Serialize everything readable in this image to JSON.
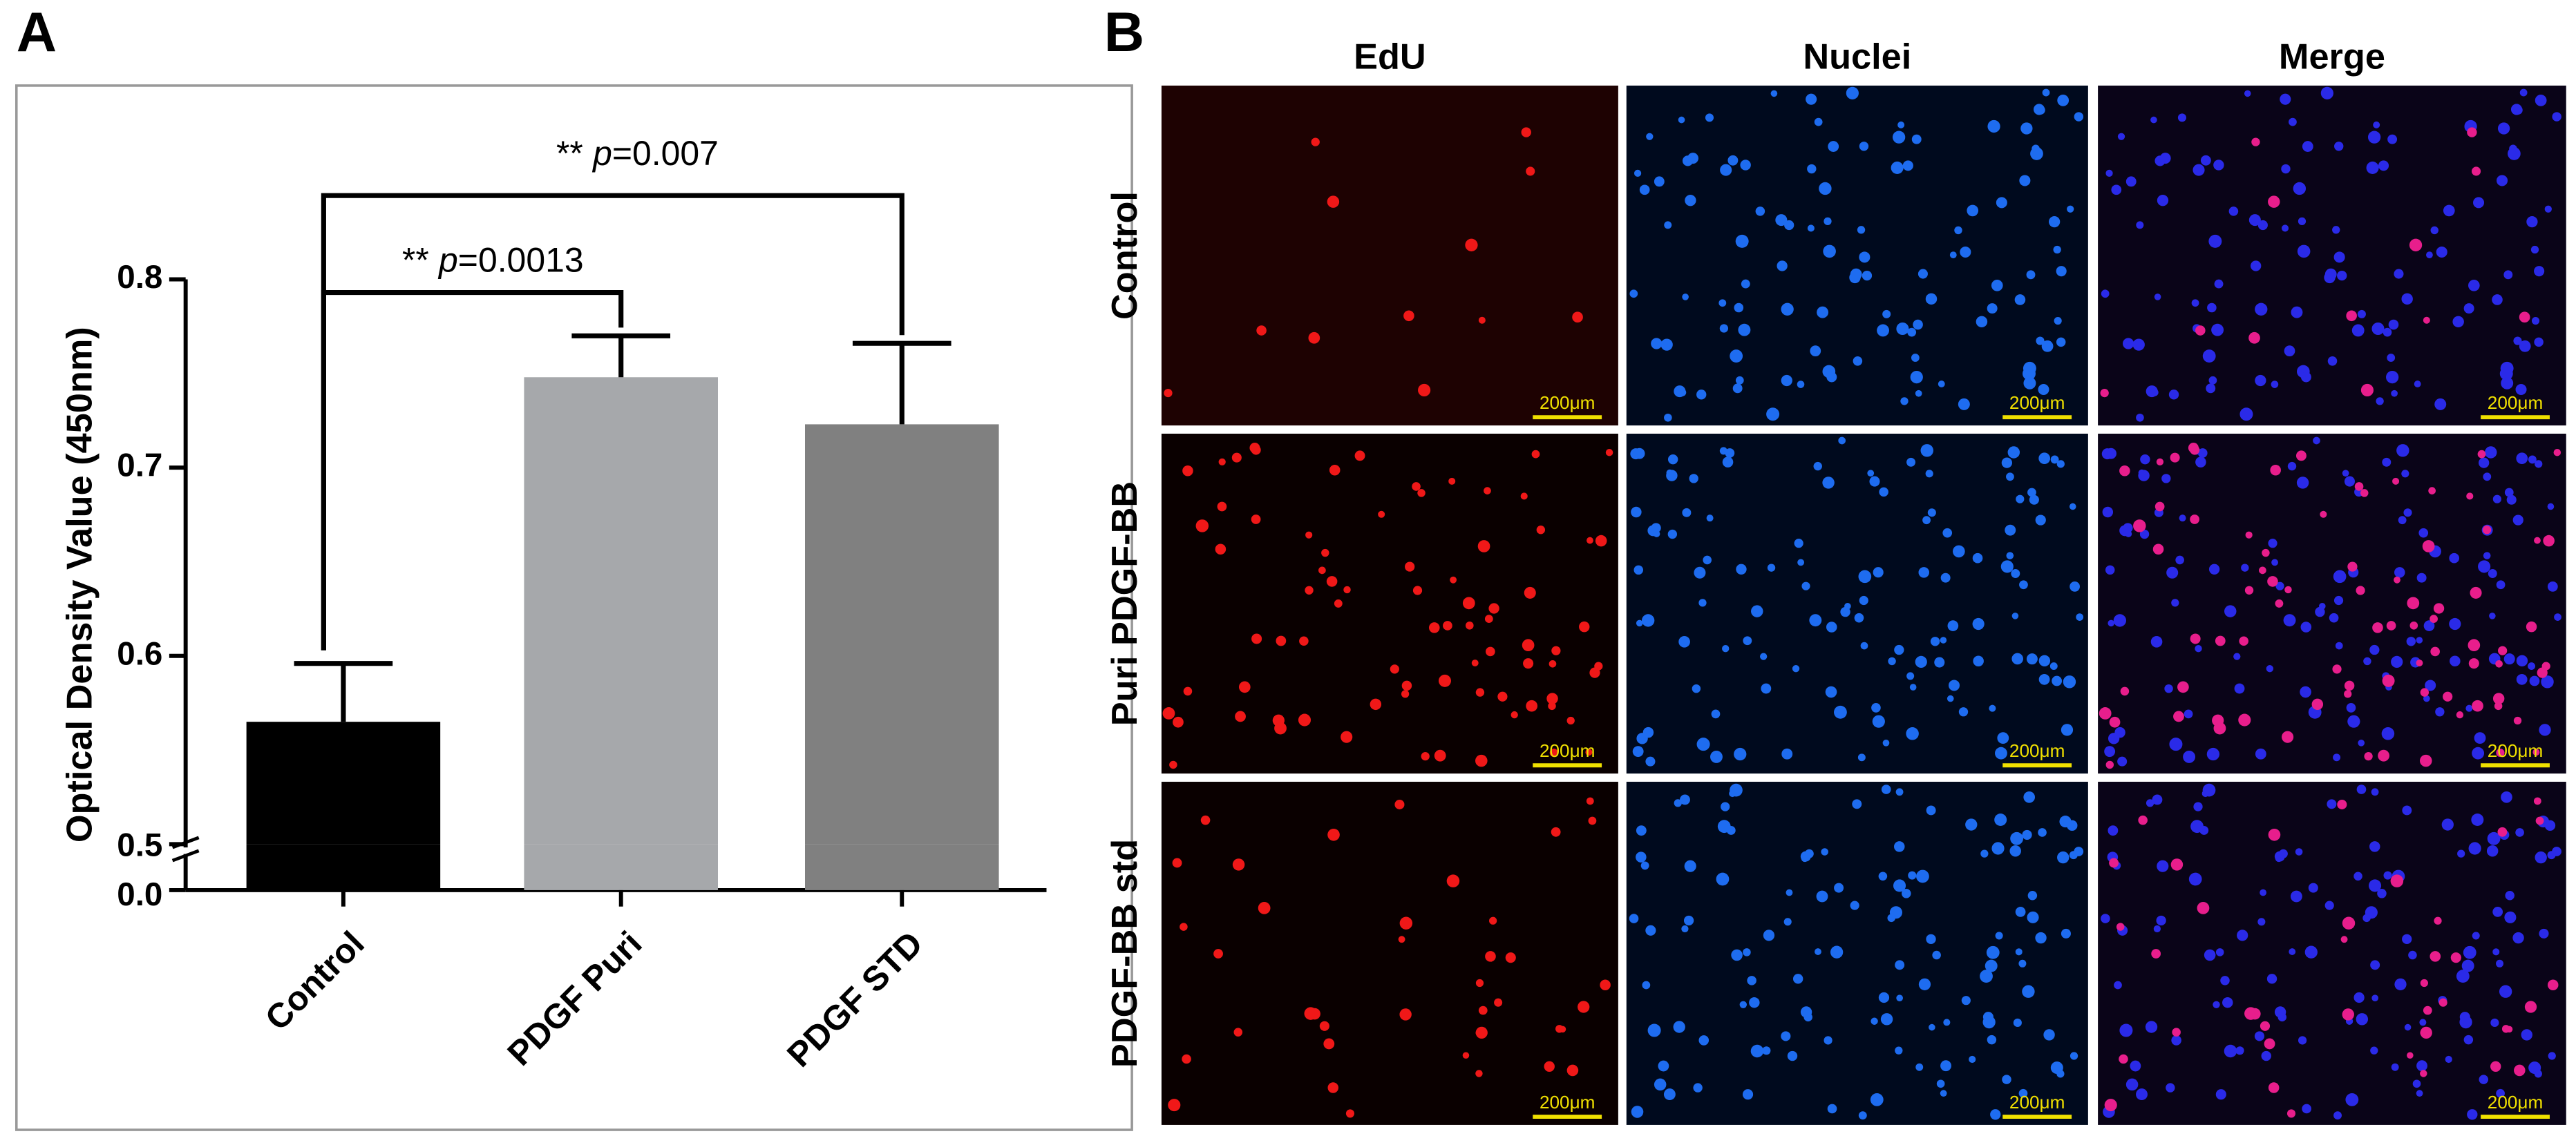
{
  "panel_labels": [
    "A",
    "B"
  ],
  "chart_data": {
    "type": "bar",
    "y_label": "Optical Density Value (450nm)",
    "categories": [
      "Control",
      "PDGF Puri",
      "PDGF STD"
    ],
    "values": [
      0.565,
      0.748,
      0.723
    ],
    "errors": [
      0.031,
      0.022,
      0.043
    ],
    "colors": [
      "#000000",
      "#a6a8ab",
      "#808080"
    ],
    "ylim": [
      0,
      0.8
    ],
    "y_segments": [
      [
        0,
        0.5
      ],
      [
        0.5,
        0.8
      ]
    ],
    "yticks": [
      {
        "value": 0,
        "label": "0.0"
      },
      {
        "value": 0.5,
        "label": "0.5"
      },
      {
        "value": 0.6,
        "label": "0.6"
      },
      {
        "value": 0.7,
        "label": "0.7"
      },
      {
        "value": 0.8,
        "label": "0.8"
      }
    ],
    "annotations": [
      {
        "stars": "**",
        "stat": "p",
        "text": "=0.0013"
      },
      {
        "stars": "**",
        "stat": "p",
        "text": "=0.007"
      }
    ]
  },
  "micrographs": {
    "columns": [
      "EdU",
      "Nuclei",
      "Merge"
    ],
    "rows": [
      "Control",
      "Puri PDGF-BB",
      "PDGF-BB std"
    ],
    "scale_bar": "200μm"
  }
}
